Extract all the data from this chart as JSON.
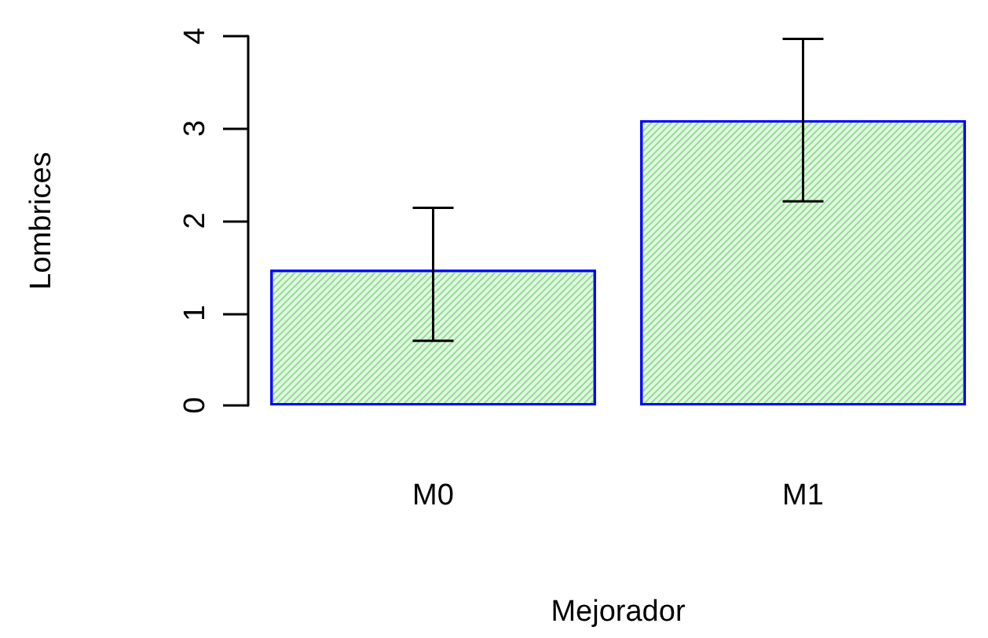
{
  "chart_data": {
    "type": "bar",
    "xlabel": "Mejorador",
    "ylabel": "Lombrices",
    "categories": [
      "M0",
      "M1"
    ],
    "series": [
      {
        "color": "#8fe08f",
        "values": [
          1.47,
          3.09
        ],
        "errors": [
          [
            0.7,
            2.14
          ],
          [
            2.21,
            3.97
          ]
        ]
      }
    ],
    "ylim": [
      0,
      4
    ],
    "yticks": [
      0,
      1,
      2,
      3,
      4
    ],
    "grid": false
  }
}
